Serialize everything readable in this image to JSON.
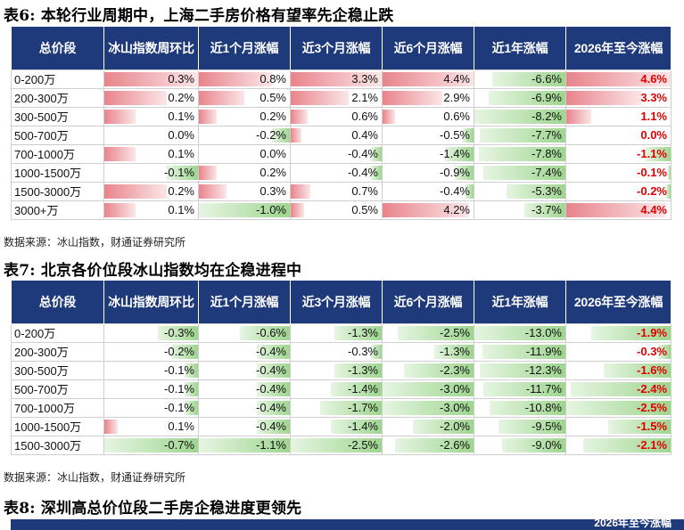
{
  "table6": {
    "title": "表6: 本轮行业周期中，上海二手房价格有望率先企稳止跌",
    "headers": [
      "总价段",
      "冰山指数周环比",
      "近1个月涨幅",
      "近3个月涨幅",
      "近6个月涨幅",
      "近1年涨幅",
      "2026年至今涨幅"
    ],
    "rows": [
      {
        "label": "0-200万",
        "values": [
          "0.3%",
          "0.8%",
          "3.3%",
          "4.4%",
          "-6.6%",
          "4.6%"
        ],
        "levels": [
          0.3,
          0.8,
          3.3,
          4.4,
          -6.6,
          4.6
        ]
      },
      {
        "label": "200-300万",
        "values": [
          "0.2%",
          "0.5%",
          "2.1%",
          "2.9%",
          "-6.9%",
          "3.3%"
        ],
        "levels": [
          0.2,
          0.5,
          2.1,
          2.9,
          -6.9,
          3.3
        ]
      },
      {
        "label": "300-500万",
        "values": [
          "0.1%",
          "0.2%",
          "0.6%",
          "0.6%",
          "-8.2%",
          "1.1%"
        ],
        "levels": [
          0.1,
          0.2,
          0.6,
          0.6,
          -8.2,
          1.1
        ]
      },
      {
        "label": "500-700万",
        "values": [
          "0.0%",
          "-0.2%",
          "0.4%",
          "-0.5%",
          "-7.7%",
          "0.0%"
        ],
        "levels": [
          0.0,
          -0.2,
          0.4,
          -0.5,
          -7.7,
          0.0
        ]
      },
      {
        "label": "700-1000万",
        "values": [
          "0.1%",
          "0.0%",
          "-0.4%",
          "-1.4%",
          "-7.8%",
          "-1.1%"
        ],
        "levels": [
          0.1,
          0.0,
          -0.4,
          -1.4,
          -7.8,
          -1.1
        ]
      },
      {
        "label": "1000-1500万",
        "values": [
          "-0.1%",
          "0.2%",
          "-0.4%",
          "-0.9%",
          "-7.4%",
          "-0.1%"
        ],
        "levels": [
          -0.1,
          0.2,
          -0.4,
          -0.9,
          -7.4,
          -0.1
        ]
      },
      {
        "label": "1500-3000万",
        "values": [
          "0.2%",
          "0.3%",
          "0.7%",
          "-0.4%",
          "-5.3%",
          "-0.2%"
        ],
        "levels": [
          0.2,
          0.3,
          0.7,
          -0.4,
          -5.3,
          -0.2
        ]
      },
      {
        "label": "3000+万",
        "values": [
          "0.1%",
          "-1.0%",
          "0.5%",
          "4.2%",
          "-3.7%",
          "4.4%"
        ],
        "levels": [
          0.1,
          -1.0,
          0.5,
          4.2,
          -3.7,
          4.4
        ]
      }
    ],
    "source": "数据来源：冰山指数，财通证券研究所"
  },
  "table7": {
    "title": "表7: 北京各价位段冰山指数均在企稳进程中",
    "headers": [
      "总价段",
      "冰山指数周环比",
      "近1个月涨幅",
      "近3个月涨幅",
      "近6个月涨幅",
      "近1年涨幅",
      "2026年至今涨幅"
    ],
    "rows": [
      {
        "label": "0-200万",
        "values": [
          "-0.3%",
          "-0.6%",
          "-1.3%",
          "-2.5%",
          "-13.0%",
          "-1.9%"
        ],
        "levels": [
          -0.3,
          -0.6,
          -1.3,
          -2.5,
          -13.0,
          -1.9
        ]
      },
      {
        "label": "200-300万",
        "values": [
          "-0.2%",
          "-0.4%",
          "-0.3%",
          "-1.3%",
          "-11.9%",
          "-0.3%"
        ],
        "levels": [
          -0.2,
          -0.4,
          -0.3,
          -1.3,
          -11.9,
          -0.3
        ]
      },
      {
        "label": "300-500万",
        "values": [
          "-0.1%",
          "-0.4%",
          "-1.3%",
          "-2.3%",
          "-12.3%",
          "-1.6%"
        ],
        "levels": [
          -0.1,
          -0.4,
          -1.3,
          -2.3,
          -12.3,
          -1.6
        ]
      },
      {
        "label": "500-700万",
        "values": [
          "-0.1%",
          "-0.4%",
          "-1.4%",
          "-3.0%",
          "-11.7%",
          "-2.4%"
        ],
        "levels": [
          -0.1,
          -0.4,
          -1.4,
          -3.0,
          -11.7,
          -2.4
        ]
      },
      {
        "label": "700-1000万",
        "values": [
          "-0.1%",
          "-0.4%",
          "-1.7%",
          "-3.0%",
          "-10.8%",
          "-2.5%"
        ],
        "levels": [
          -0.1,
          -0.4,
          -1.7,
          -3.0,
          -10.8,
          -2.5
        ]
      },
      {
        "label": "1000-1500万",
        "values": [
          "0.1%",
          "-0.4%",
          "-1.4%",
          "-2.0%",
          "-9.5%",
          "-1.5%"
        ],
        "levels": [
          0.1,
          -0.4,
          -1.4,
          -2.0,
          -9.5,
          -1.5
        ]
      },
      {
        "label": "1500-3000万",
        "values": [
          "-0.7%",
          "-1.1%",
          "-2.5%",
          "-2.6%",
          "-9.0%",
          "-2.1%"
        ],
        "levels": [
          -0.7,
          -1.1,
          -2.5,
          -2.6,
          -9.0,
          -2.1
        ]
      }
    ],
    "source": "数据来源：冰山指数，财通证券研究所"
  },
  "table8": {
    "title": "表8: 深圳高总价位段二手房企稳进度更领先",
    "partial_header": "2026年至今涨幅"
  }
}
